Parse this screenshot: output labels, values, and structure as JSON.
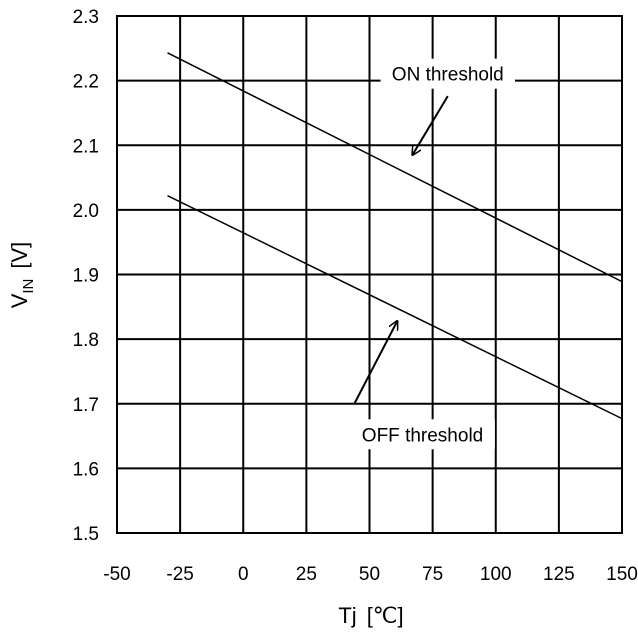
{
  "chart_data": {
    "type": "line",
    "title": "",
    "xlabel": "Tj",
    "xlabel_unit": "[℃]",
    "ylabel_main": "V",
    "ylabel_sub": "IN",
    "ylabel_unit": "[V]",
    "xlim": [
      -50,
      150
    ],
    "ylim": [
      1.5,
      2.3
    ],
    "x_ticks": [
      "-50",
      "-25",
      "0",
      "25",
      "50",
      "75",
      "100",
      "125",
      "150"
    ],
    "y_ticks": [
      "1.5",
      "1.6",
      "1.7",
      "1.8",
      "1.9",
      "2.0",
      "2.1",
      "2.2",
      "2.3"
    ],
    "x_tick_values": [
      -50,
      -25,
      0,
      25,
      50,
      75,
      100,
      125,
      150
    ],
    "y_tick_values": [
      1.5,
      1.6,
      1.7,
      1.8,
      1.9,
      2.0,
      2.1,
      2.2,
      2.3
    ],
    "grid": true,
    "series": [
      {
        "name": "ON threshold",
        "x": [
          -30,
          150
        ],
        "y": [
          2.243,
          1.889
        ]
      },
      {
        "name": "OFF threshold",
        "x": [
          -30,
          150
        ],
        "y": [
          2.022,
          1.677
        ]
      }
    ],
    "annotations": [
      {
        "text": "ON threshold",
        "label_at": [
          81,
          2.203
        ],
        "arrow_from": [
          81,
          2.176
        ],
        "arrow_to": [
          67,
          2.085
        ]
      },
      {
        "text": "OFF threshold",
        "label_at": [
          71,
          1.645
        ],
        "arrow_from": [
          44,
          1.7
        ],
        "arrow_to": [
          61,
          1.828
        ]
      }
    ]
  }
}
